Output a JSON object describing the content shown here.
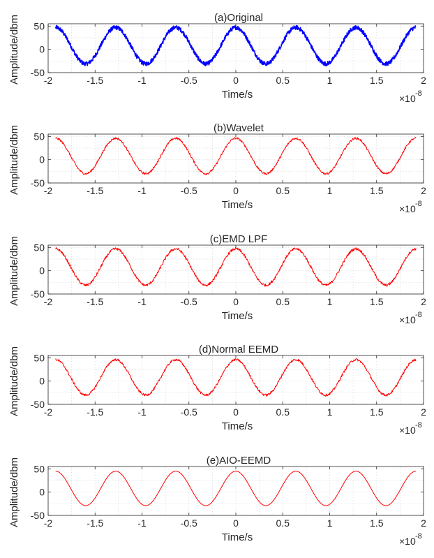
{
  "chart_data": [
    {
      "type": "line",
      "title": "(a)Original",
      "xlabel": "Time/s",
      "ylabel": "Amplitude/dbm",
      "x_exponent_label": "×10",
      "x_exponent_power": "-8",
      "xlim": [
        -2,
        2
      ],
      "ylim": [
        -50,
        55
      ],
      "xticks": [
        -2,
        -1.5,
        -1,
        -0.5,
        0,
        0.5,
        1,
        1.5,
        2
      ],
      "xtick_labels": [
        "-2",
        "-1.5",
        "-1",
        "-0.5",
        "0",
        "0.5",
        "1",
        "1.5",
        "2"
      ],
      "yticks": [
        -50,
        0,
        50
      ],
      "ytick_labels": [
        "-50",
        "0",
        "50"
      ],
      "grid": "dotted",
      "color": "#0000ff",
      "signal": {
        "x_start": -1.92,
        "x_end": 1.92,
        "period": 0.64,
        "mean": 8,
        "amplitude": 39,
        "peak_x": 0,
        "noise": 4.5
      },
      "noise": "high"
    },
    {
      "type": "line",
      "title": "(b)Wavelet",
      "xlabel": "Time/s",
      "ylabel": "Amplitude/dbm",
      "x_exponent_label": "×10",
      "x_exponent_power": "-8",
      "xlim": [
        -2,
        2
      ],
      "ylim": [
        -50,
        55
      ],
      "xticks": [
        -2,
        -1.5,
        -1,
        -0.5,
        0,
        0.5,
        1,
        1.5,
        2
      ],
      "xtick_labels": [
        "-2",
        "-1.5",
        "-1",
        "-0.5",
        "0",
        "0.5",
        "1",
        "1.5",
        "2"
      ],
      "yticks": [
        -50,
        0,
        50
      ],
      "ytick_labels": [
        "-50",
        "0",
        "50"
      ],
      "grid": "dotted",
      "color": "#ff0000",
      "signal": {
        "x_start": -1.92,
        "x_end": 1.92,
        "period": 0.64,
        "mean": 8,
        "amplitude": 38,
        "peak_x": 0,
        "noise": 2.2
      },
      "noise": "medium"
    },
    {
      "type": "line",
      "title": "(c)EMD LPF",
      "xlabel": "Time/s",
      "ylabel": "Amplitude/dbm",
      "x_exponent_label": "×10",
      "x_exponent_power": "-8",
      "xlim": [
        -2,
        2
      ],
      "ylim": [
        -50,
        55
      ],
      "xticks": [
        -2,
        -1.5,
        -1,
        -0.5,
        0,
        0.5,
        1,
        1.5,
        2
      ],
      "xtick_labels": [
        "-2",
        "-1.5",
        "-1",
        "-0.5",
        "0",
        "0.5",
        "1",
        "1.5",
        "2"
      ],
      "yticks": [
        -50,
        0,
        50
      ],
      "ytick_labels": [
        "-50",
        "0",
        "50"
      ],
      "grid": "dotted",
      "color": "#ff0000",
      "signal": {
        "x_start": -1.92,
        "x_end": 1.92,
        "period": 0.64,
        "mean": 8,
        "amplitude": 39,
        "peak_x": 0,
        "noise": 2.8
      },
      "noise": "medium"
    },
    {
      "type": "line",
      "title": "(d)Normal EEMD",
      "xlabel": "Time/s",
      "ylabel": "Amplitude/dbm",
      "x_exponent_label": "×10",
      "x_exponent_power": "-8",
      "xlim": [
        -2,
        2
      ],
      "ylim": [
        -50,
        55
      ],
      "xticks": [
        -2,
        -1.5,
        -1,
        -0.5,
        0,
        0.5,
        1,
        1.5,
        2
      ],
      "xtick_labels": [
        "-2",
        "-1.5",
        "-1",
        "-0.5",
        "0",
        "0.5",
        "1",
        "1.5",
        "2"
      ],
      "yticks": [
        -50,
        0,
        50
      ],
      "ytick_labels": [
        "-50",
        "0",
        "50"
      ],
      "grid": "dotted",
      "color": "#ff0000",
      "signal": {
        "x_start": -1.92,
        "x_end": 1.92,
        "period": 0.64,
        "mean": 8,
        "amplitude": 38,
        "peak_x": 0,
        "noise": 2.5
      },
      "noise": "medium"
    },
    {
      "type": "line",
      "title": "(e)AIO-EEMD",
      "xlabel": "Time/s",
      "ylabel": "Amplitude/dbm",
      "x_exponent_label": "×10",
      "x_exponent_power": "-8",
      "xlim": [
        -2,
        2
      ],
      "ylim": [
        -50,
        55
      ],
      "xticks": [
        -2,
        -1.5,
        -1,
        -0.5,
        0,
        0.5,
        1,
        1.5,
        2
      ],
      "xtick_labels": [
        "-2",
        "-1.5",
        "-1",
        "-0.5",
        "0",
        "0.5",
        "1",
        "1.5",
        "2"
      ],
      "yticks": [
        -50,
        0,
        50
      ],
      "ytick_labels": [
        "-50",
        "0",
        "50"
      ],
      "grid": "dotted",
      "color": "#ff0000",
      "signal": {
        "x_start": -1.92,
        "x_end": 1.92,
        "period": 0.64,
        "mean": 8,
        "amplitude": 37,
        "peak_x": 0,
        "noise": 0
      },
      "noise": "none"
    }
  ]
}
